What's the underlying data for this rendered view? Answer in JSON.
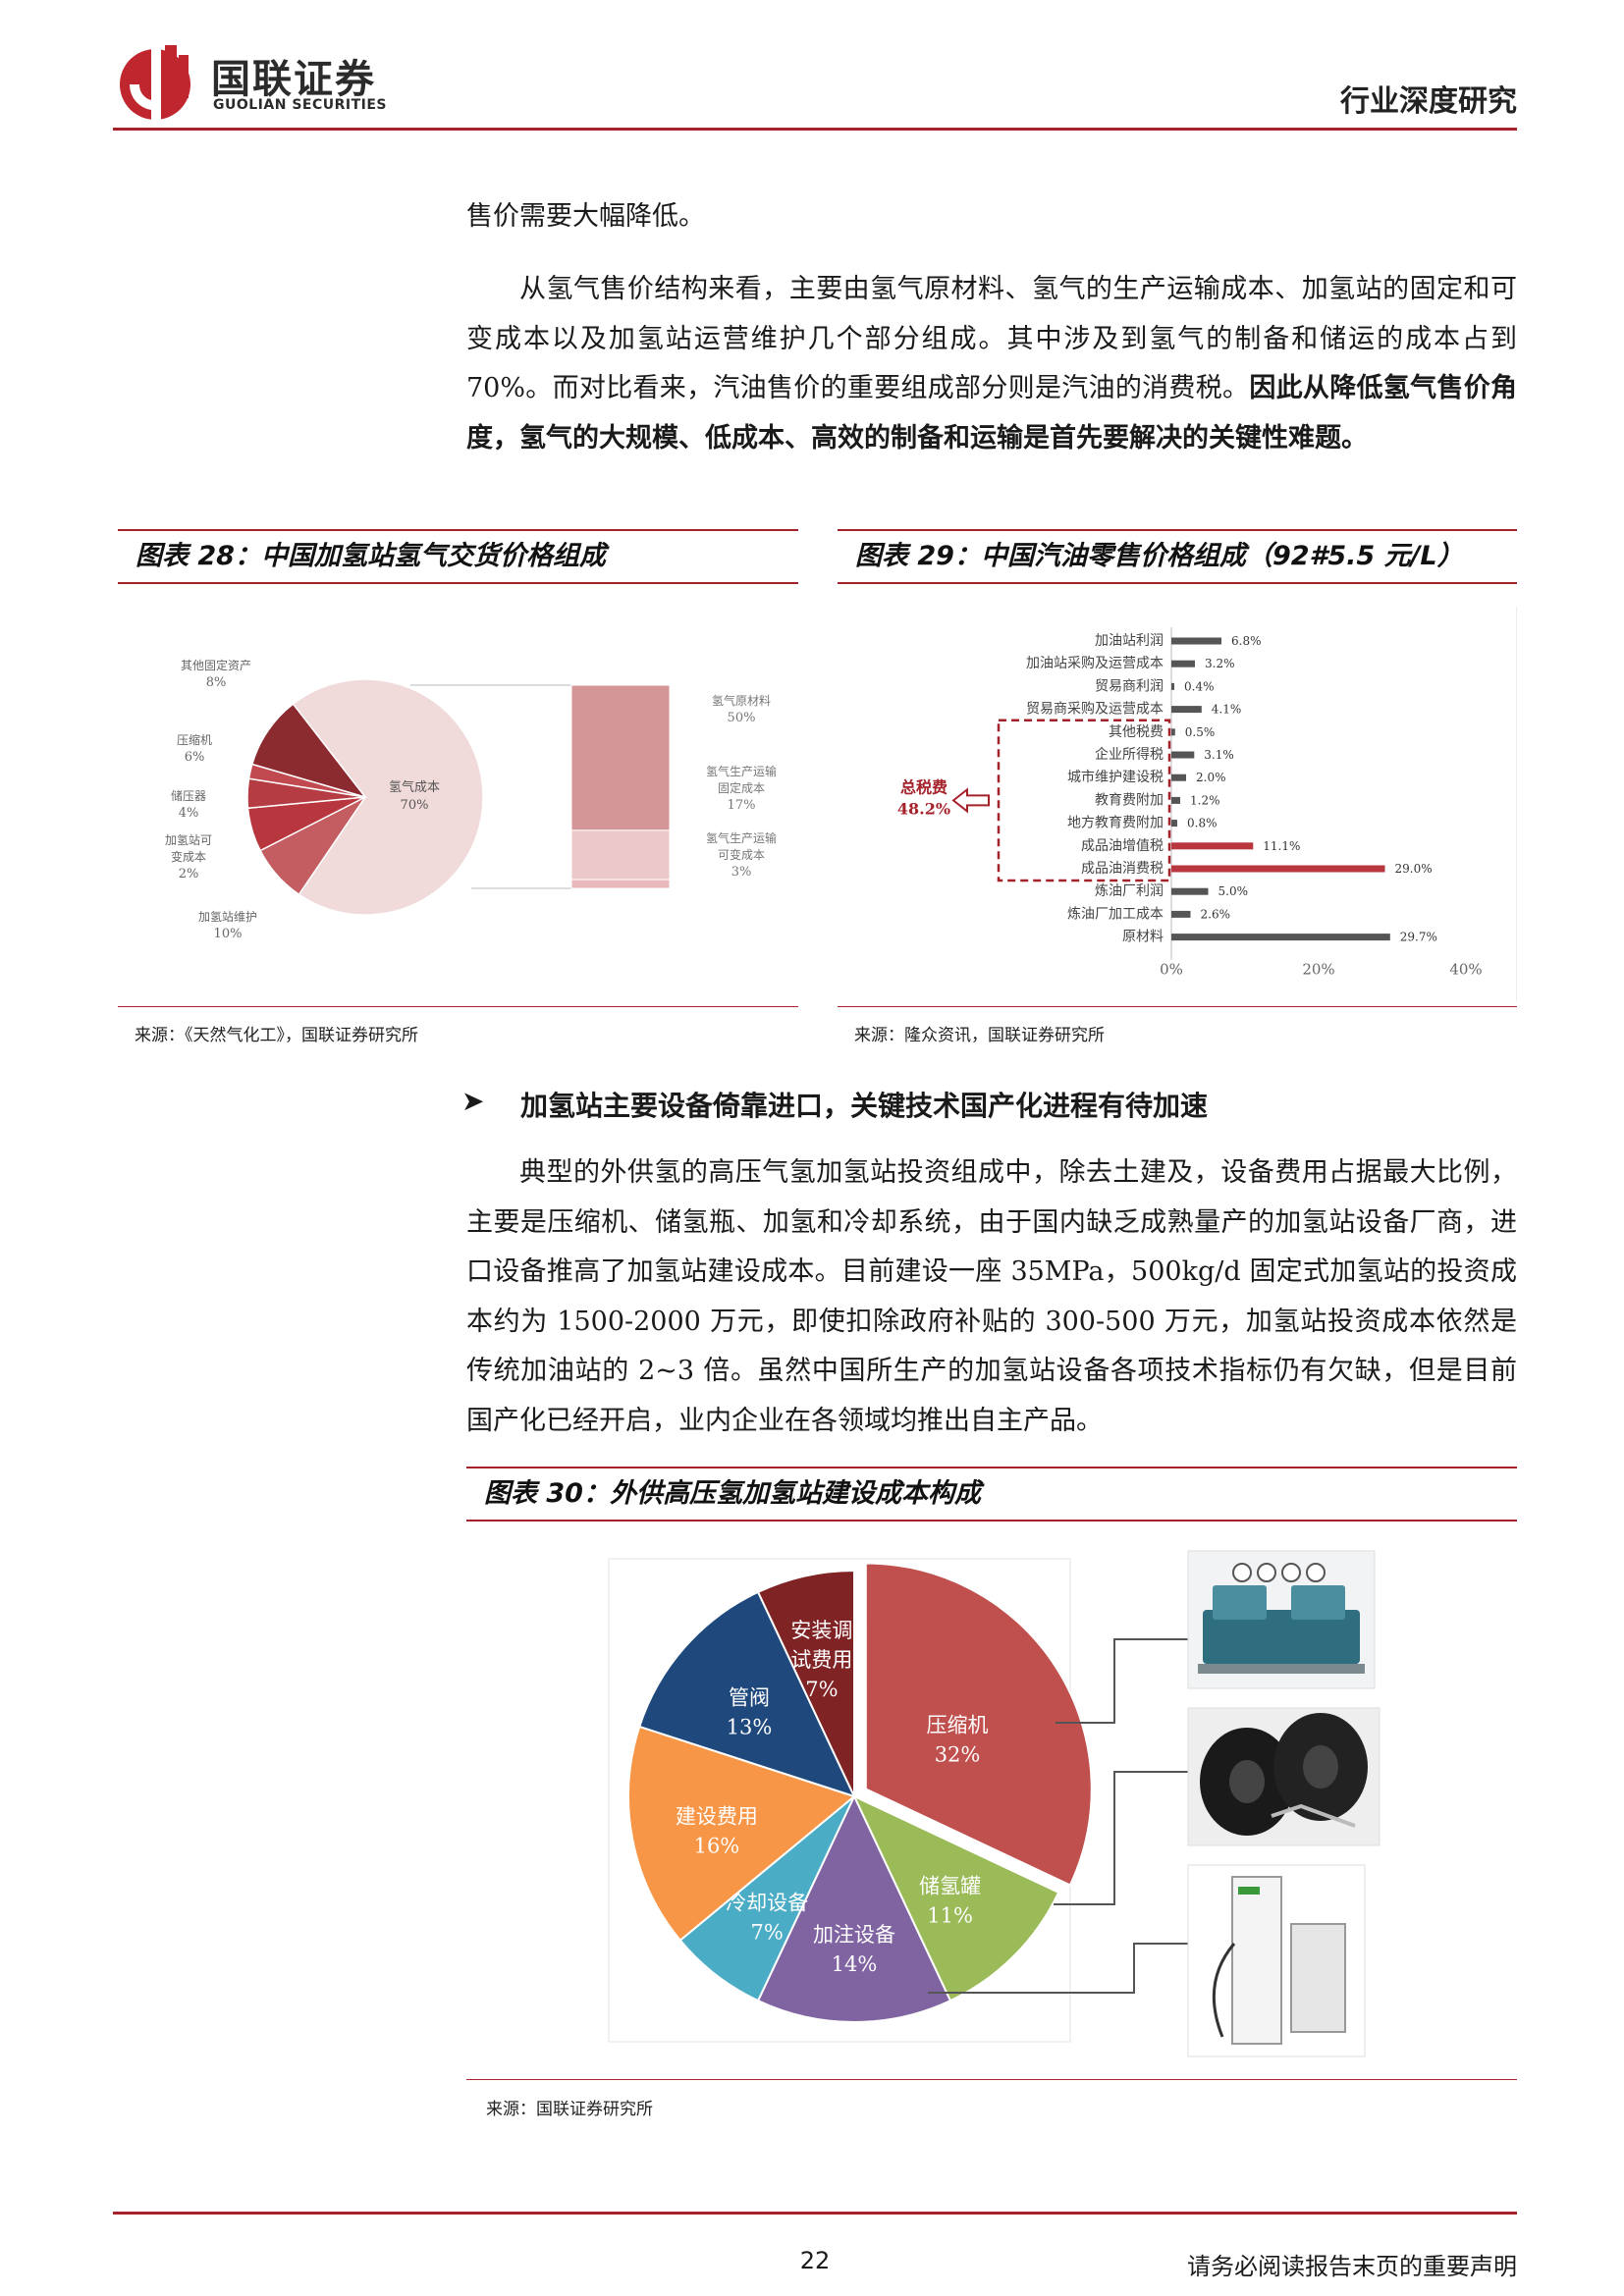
{
  "header": {
    "logo_cn": "国联证券",
    "logo_en": "GUOLIAN SECURITIES",
    "report_type": "行业深度研究",
    "brand_color": "#a5222b"
  },
  "para1": "售价需要大幅降低。",
  "para2_normal": "从氢气售价结构来看，主要由氢气原材料、氢气的生产运输成本、加氢站的固定和可变成本以及加氢站运营维护几个部分组成。其中涉及到氢气的制备和储运的成本占到 70%。而对比看来，汽油售价的重要组成部分则是汽油的消费税。",
  "para2_bold": "因此从降低氢气售价角度，氢气的大规模、低成本、高效的制备和运输是首先要解决的关键性难题。",
  "fig28": {
    "title": "图表 28：中国加氢站氢气交货价格组成",
    "source": "来源：《天然气化工》，国联证券研究所"
  },
  "fig29": {
    "title": "图表 29：中国汽油零售价格组成（92#5.5 元/L）",
    "source": "来源：隆众资讯，国联证券研究所",
    "tax_label": "总税费",
    "tax_value": "48.2%"
  },
  "bullet_heading": "加氢站主要设备倚靠进口，关键技术国产化进程有待加速",
  "para3": "典型的外供氢的高压气氢加氢站投资组成中，除去土建及，设备费用占据最大比例，主要是压缩机、储氢瓶、加氢和冷却系统，由于国内缺乏成熟量产的加氢站设备厂商，进口设备推高了加氢站建设成本。目前建设一座 35MPa，500kg/d 固定式加氢站的投资成本约为 1500-2000 万元，即使扣除政府补贴的 300-500 万元，加氢站投资成本依然是传统加油站的 2~3 倍。虽然中国所生产的加氢站设备各项技术指标仍有欠缺，但是目前国产化已经开启，业内企业在各领域均推出自主产品。",
  "fig30": {
    "title": "图表 30：外供高压氢加氢站建设成本构成",
    "source": "来源：国联证券研究所"
  },
  "footer": {
    "page_number": "22",
    "note": "请务必阅读报告末页的重要声明"
  },
  "chart_data": [
    {
      "type": "pie",
      "slices": [
        {
          "label": "氢气成本",
          "value": 70,
          "text": "70%",
          "color": "#f0dada"
        },
        {
          "label": "其他固定资产",
          "value": 8,
          "text": "8%",
          "color": "#c45d62"
        },
        {
          "label": "压缩机",
          "value": 6,
          "text": "6%",
          "color": "#b8363d"
        },
        {
          "label": "储压器",
          "value": 4,
          "text": "4%",
          "color": "#b53c43"
        },
        {
          "label": "加氢站可变成本",
          "value": 2,
          "text": "2%",
          "color": "#c04a50"
        },
        {
          "label": "加氢站维护",
          "value": 10,
          "text": "10%",
          "color": "#8b2a2f"
        }
      ],
      "breakdown": [
        {
          "label": "氢气原材料",
          "value": 50,
          "text": "50%",
          "color": "#d49597"
        },
        {
          "label": "氢气生产运输固定成本",
          "value": 17,
          "text": "17%",
          "color": "#ebc9ca"
        },
        {
          "label": "氢气生产运输可变成本",
          "value": 3,
          "text": "3%",
          "color": "#e8b8ba"
        }
      ]
    },
    {
      "type": "bar",
      "orientation": "horizontal",
      "categories": [
        "加油站利润",
        "加油站采购及运营成本",
        "贸易商利润",
        "贸易商采购及运营成本",
        "其他税费",
        "企业所得税",
        "城市维护建设税",
        "教育费附加",
        "地方教育费附加",
        "成品油增值税",
        "成品油消费税",
        "炼油厂利润",
        "炼油厂加工成本",
        "原材料"
      ],
      "values": [
        6.8,
        3.2,
        0.4,
        4.1,
        0.5,
        3.1,
        2.0,
        1.2,
        0.8,
        11.1,
        29.0,
        5.0,
        2.6,
        29.7
      ],
      "value_labels": [
        "6.8%",
        "3.2%",
        "0.4%",
        "4.1%",
        "0.5%",
        "3.1%",
        "2.0%",
        "1.2%",
        "0.8%",
        "11.1%",
        "29.0%",
        "5.0%",
        "2.6%",
        "29.7%"
      ],
      "highlighted": [
        false,
        false,
        false,
        false,
        false,
        false,
        false,
        false,
        false,
        true,
        true,
        false,
        false,
        false
      ],
      "xlim": [
        0,
        40
      ],
      "xticks": [
        "0%",
        "20%",
        "40%"
      ],
      "bar_color": "#555555",
      "highlight_color": "#b8363d"
    },
    {
      "type": "pie",
      "slices": [
        {
          "label": "压缩机",
          "value": 32,
          "text": "32%",
          "color": "#c0504d"
        },
        {
          "label": "储氢罐",
          "value": 11,
          "text": "11%",
          "color": "#9bbb59"
        },
        {
          "label": "加注设备",
          "value": 14,
          "text": "14%",
          "color": "#8064a2"
        },
        {
          "label": "冷却设备",
          "value": 7,
          "text": "7%",
          "color": "#4bacc6"
        },
        {
          "label": "建设费用",
          "value": 16,
          "text": "16%",
          "color": "#f79646"
        },
        {
          "label": "管阀",
          "value": 13,
          "text": "13%",
          "color": "#1f497d"
        },
        {
          "label": "安装调试费用",
          "value": 7,
          "text": "7%",
          "color": "#7f2325"
        }
      ]
    }
  ]
}
